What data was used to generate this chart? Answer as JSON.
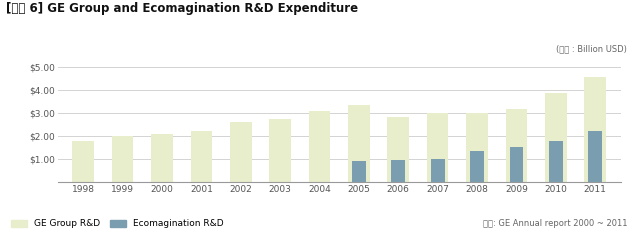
{
  "title": "[그림 6] GE Group and Ecomagination R&D Expenditure",
  "unit_label": "(단위 : Billion USD)",
  "source_label": "참고: GE Annual report 2000 ~ 2011",
  "years": [
    1998,
    1999,
    2000,
    2001,
    2002,
    2003,
    2004,
    2005,
    2006,
    2007,
    2008,
    2009,
    2010,
    2011
  ],
  "ge_group_rd": [
    1.8,
    2.0,
    2.1,
    2.2,
    2.6,
    2.75,
    3.1,
    3.35,
    2.85,
    3.0,
    3.0,
    3.2,
    3.9,
    4.6
  ],
  "ecomagination_rd": [
    0,
    0,
    0,
    0,
    0,
    0,
    0,
    0.9,
    0.95,
    1.0,
    1.35,
    1.5,
    1.8,
    2.2
  ],
  "ge_color": "#e8edcc",
  "eco_color": "#7a9eb0",
  "ylim": [
    0,
    5.5
  ],
  "yticks": [
    1.0,
    2.0,
    3.0,
    4.0,
    5.0
  ],
  "ytick_labels": [
    "$1.00",
    "$2.00",
    "$3.00",
    "$4.00",
    "$5.00"
  ],
  "background_color": "#ffffff",
  "grid_color": "#cccccc",
  "title_fontsize": 8.5,
  "tick_fontsize": 6.5,
  "legend_ge": "GE Group R&D",
  "legend_eco": "Ecomagination R&D",
  "bar_width": 0.55,
  "eco_bar_width": 0.35
}
